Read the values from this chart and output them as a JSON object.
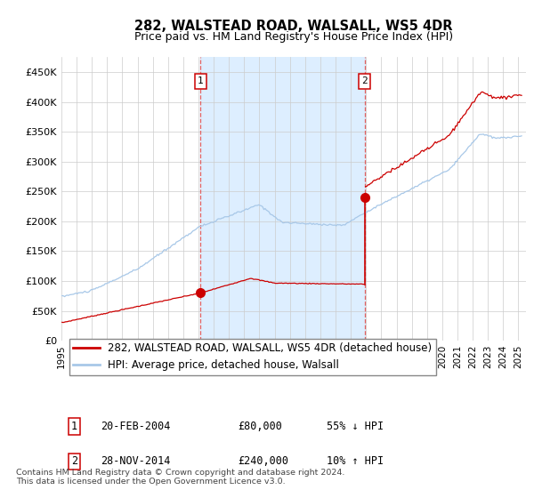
{
  "title": "282, WALSTEAD ROAD, WALSALL, WS5 4DR",
  "subtitle": "Price paid vs. HM Land Registry's House Price Index (HPI)",
  "ylim": [
    0,
    475000
  ],
  "yticks": [
    0,
    50000,
    100000,
    150000,
    200000,
    250000,
    300000,
    350000,
    400000,
    450000
  ],
  "ytick_labels": [
    "£0",
    "£50K",
    "£100K",
    "£150K",
    "£200K",
    "£250K",
    "£300K",
    "£350K",
    "£400K",
    "£450K"
  ],
  "xlim_start": 1995.0,
  "xlim_end": 2025.5,
  "xticks": [
    1995,
    1996,
    1997,
    1998,
    1999,
    2000,
    2001,
    2002,
    2003,
    2004,
    2005,
    2006,
    2007,
    2008,
    2009,
    2010,
    2011,
    2012,
    2013,
    2014,
    2015,
    2016,
    2017,
    2018,
    2019,
    2020,
    2021,
    2022,
    2023,
    2024,
    2025
  ],
  "hpi_color": "#a8c8e8",
  "price_color": "#cc0000",
  "dashed_line_color": "#e06060",
  "bg_shade_color": "#ddeeff",
  "purchase1_x": 2004.13,
  "purchase1_y": 80000,
  "purchase2_x": 2014.91,
  "purchase2_y": 240000,
  "legend_label1": "282, WALSTEAD ROAD, WALSALL, WS5 4DR (detached house)",
  "legend_label2": "HPI: Average price, detached house, Walsall",
  "table_row1_num": "1",
  "table_row1_date": "20-FEB-2004",
  "table_row1_price": "£80,000",
  "table_row1_hpi": "55% ↓ HPI",
  "table_row2_num": "2",
  "table_row2_date": "28-NOV-2014",
  "table_row2_price": "£240,000",
  "table_row2_hpi": "10% ↑ HPI",
  "footnote": "Contains HM Land Registry data © Crown copyright and database right 2024.\nThis data is licensed under the Open Government Licence v3.0."
}
